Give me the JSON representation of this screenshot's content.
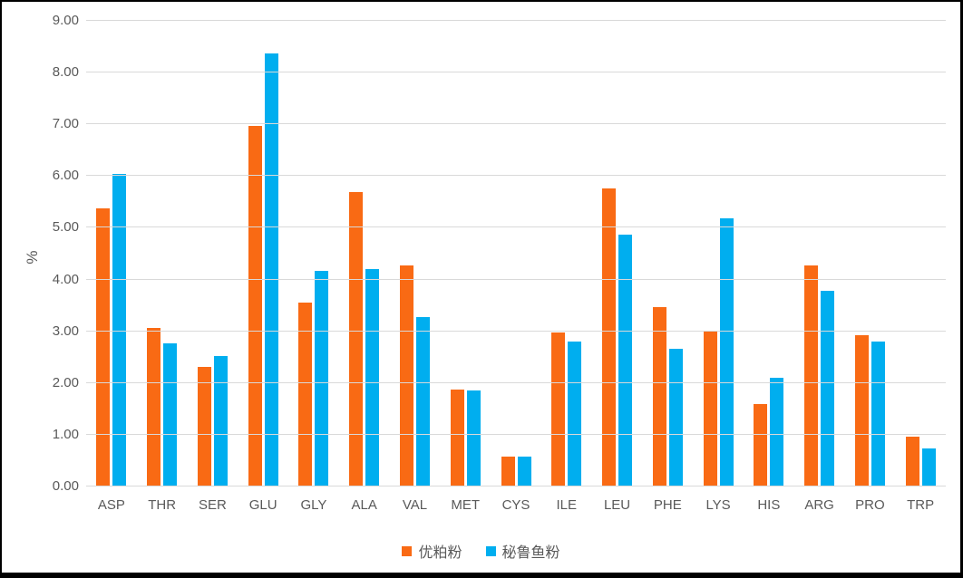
{
  "chart_data": {
    "type": "bar",
    "title": "",
    "xlabel": "",
    "ylabel": "%",
    "ylim": [
      0,
      9
    ],
    "ytick_step": 1,
    "ytick_decimals": 2,
    "grid": true,
    "legend_position": "bottom",
    "categories": [
      "ASP",
      "THR",
      "SER",
      "GLU",
      "GLY",
      "ALA",
      "VAL",
      "MET",
      "CYS",
      "ILE",
      "LEU",
      "PHE",
      "LYS",
      "HIS",
      "ARG",
      "PRO",
      "TRP"
    ],
    "series": [
      {
        "name": "优粕粉",
        "color": "#f96a14",
        "values": [
          5.38,
          3.06,
          2.32,
          6.97,
          3.56,
          5.69,
          4.27,
          1.87,
          0.58,
          2.98,
          5.76,
          3.47,
          3.02,
          1.59,
          4.27,
          2.92,
          0.97
        ]
      },
      {
        "name": "秘鲁鱼粉",
        "color": "#00aeef",
        "values": [
          6.04,
          2.76,
          2.53,
          8.37,
          4.16,
          4.21,
          3.27,
          1.85,
          0.57,
          2.8,
          4.87,
          2.66,
          5.18,
          2.11,
          3.79,
          2.8,
          0.73
        ]
      }
    ]
  },
  "colors": {
    "background": "#ffffff",
    "border": "#000000",
    "gridline": "#d9d9d9",
    "axis_text": "#595959"
  }
}
